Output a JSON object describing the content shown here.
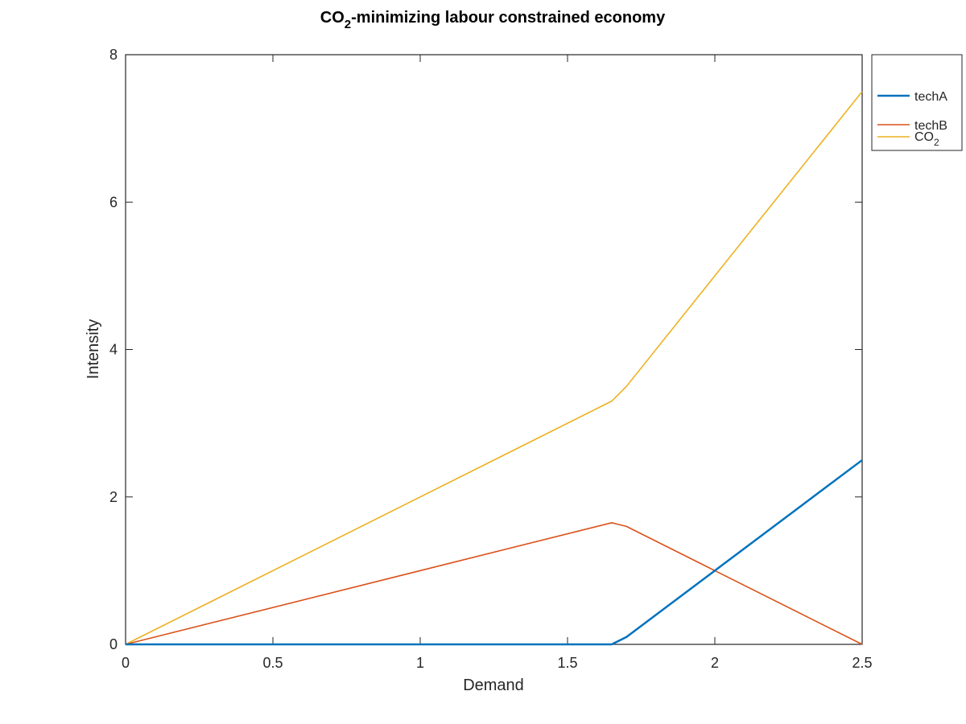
{
  "chart_data": {
    "type": "line",
    "title": "CO2-minimizing labour constrained economy",
    "title_parts": {
      "main": "CO",
      "sub": "2",
      "rest": "-minimizing labour constrained economy"
    },
    "xlabel": "Demand",
    "ylabel": "Intensity",
    "xlim": [
      0,
      2.5
    ],
    "ylim": [
      0,
      8
    ],
    "xticks": [
      0,
      0.5,
      1,
      1.5,
      2,
      2.5
    ],
    "xtick_labels": [
      "0",
      "0.5",
      "1",
      "1.5",
      "2",
      "2.5"
    ],
    "yticks": [
      0,
      2,
      4,
      6,
      8
    ],
    "ytick_labels": [
      "0",
      "2",
      "4",
      "6",
      "8"
    ],
    "grid": false,
    "legend_position": "outside-top-right",
    "series": [
      {
        "name": "techA",
        "legend_label": "techA",
        "color": "#0072bd",
        "x": [
          0,
          1.65,
          1.7,
          2.0,
          2.5
        ],
        "y": [
          0,
          0,
          0.1,
          1.0,
          2.5
        ]
      },
      {
        "name": "techB",
        "legend_label": "techB",
        "color": "#d95319",
        "x": [
          0,
          1.65,
          1.7,
          2.0,
          2.5
        ],
        "y": [
          0,
          1.65,
          1.6,
          1.0,
          0
        ]
      },
      {
        "name": "CO2",
        "legend_label": "CO",
        "legend_sub": "2",
        "color": "#edb120",
        "x": [
          0,
          1.65,
          1.7,
          2.0,
          2.5
        ],
        "y": [
          0,
          3.3,
          3.5,
          5.0,
          7.5
        ]
      }
    ]
  }
}
